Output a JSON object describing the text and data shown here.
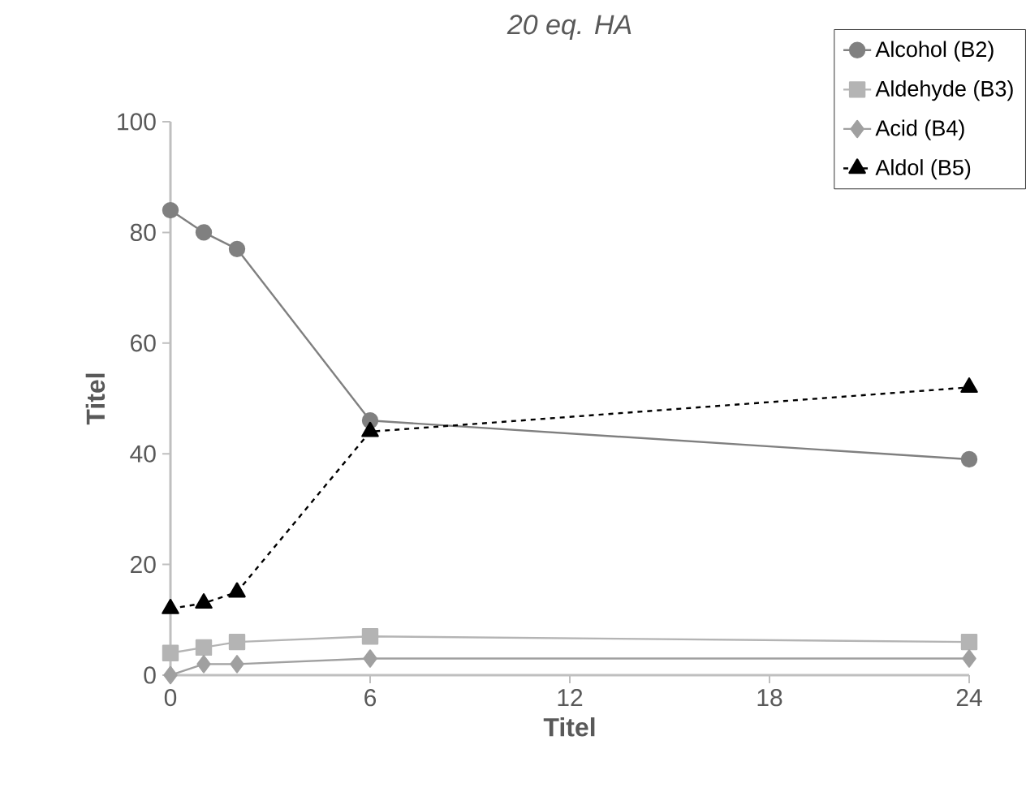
{
  "chart_data": {
    "type": "line",
    "title": "*20 eq. HA*",
    "xlabel": "Titel",
    "ylabel": "Titel",
    "x": [
      0,
      1,
      2,
      6,
      24
    ],
    "xlim": [
      0,
      24
    ],
    "xticks": [
      0,
      6,
      12,
      18,
      24
    ],
    "ylim": [
      0,
      100
    ],
    "yticks": [
      0,
      20,
      40,
      60,
      80,
      100
    ],
    "legend": "top right",
    "grid": false,
    "series": [
      {
        "name": "Alcohol (B2)",
        "color": "#808080",
        "marker": "circle",
        "line_style": "solid",
        "values": [
          84,
          80,
          77,
          46,
          39
        ]
      },
      {
        "name": "Aldehyde (B3)",
        "color": "#b4b4b4",
        "marker": "square",
        "line_style": "solid",
        "values": [
          4,
          5,
          6,
          7,
          6
        ]
      },
      {
        "name": "Acid (B4)",
        "color": "#a0a0a0",
        "marker": "diamond",
        "line_style": "solid",
        "values": [
          0,
          2,
          2,
          3,
          3
        ]
      },
      {
        "name": "Aldol (B5)",
        "color": "#000000",
        "marker": "triangle",
        "line_style": "dashed",
        "values": [
          12,
          13,
          15,
          44,
          52
        ]
      }
    ]
  }
}
